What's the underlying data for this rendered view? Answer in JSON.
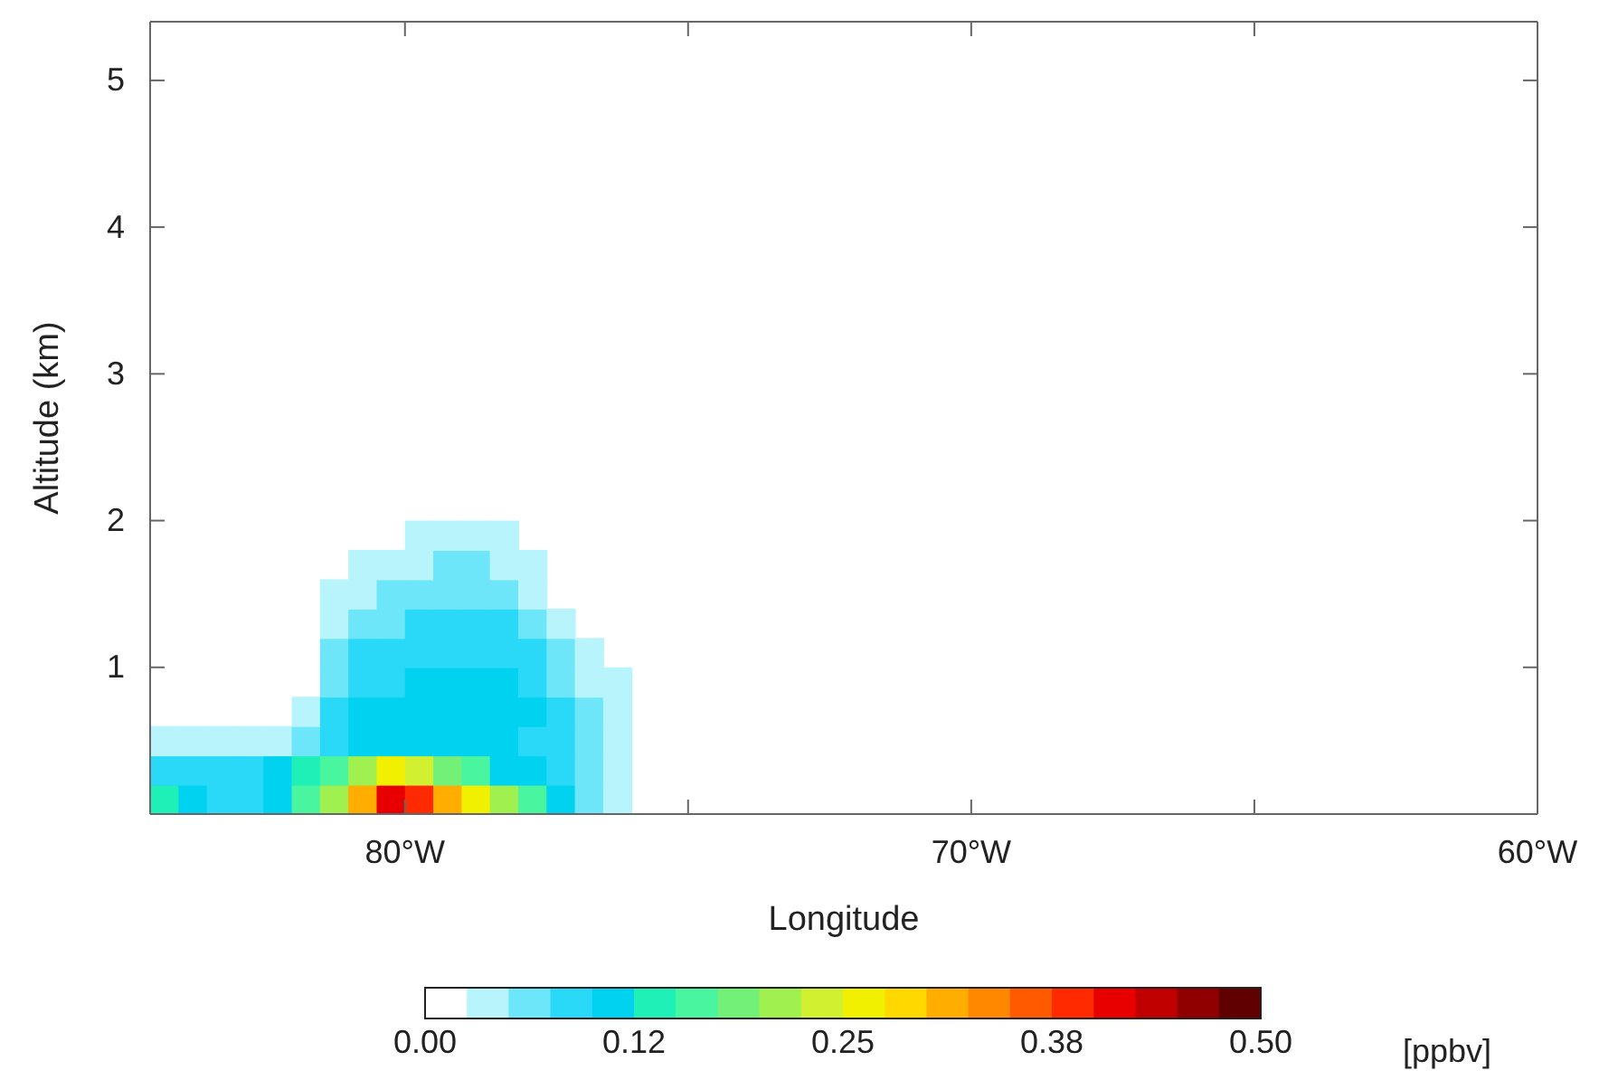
{
  "chart_data": {
    "type": "scatter",
    "marker": "square",
    "xlabel": "Longitude",
    "ylabel": "Altitude (km)",
    "clabel": "[ppbv]",
    "xlim": [
      -84.5,
      -60
    ],
    "ylim": [
      0,
      5.4
    ],
    "xticks": [
      {
        "value": -80,
        "label": "80°W"
      },
      {
        "value": -75,
        "label": null
      },
      {
        "value": -70,
        "label": "70°W"
      },
      {
        "value": -65,
        "label": null
      },
      {
        "value": -60,
        "label": "60°W"
      }
    ],
    "yticks": [
      1,
      2,
      3,
      4,
      5
    ],
    "clim": [
      0,
      0.5
    ],
    "cticks": [
      {
        "value": 0,
        "label": "0.00"
      },
      {
        "value": 0.125,
        "label": "0.12"
      },
      {
        "value": 0.25,
        "label": "0.25"
      },
      {
        "value": 0.375,
        "label": "0.38"
      },
      {
        "value": 0.5,
        "label": "0.50"
      }
    ],
    "x": [
      -84.25,
      -83.75,
      -83.25,
      -82.75,
      -82.25,
      -81.75,
      -81.25,
      -80.75,
      -80.25,
      -79.75,
      -79.25,
      -78.75,
      -78.25,
      -77.75,
      -77.25,
      -76.75,
      -76.25,
      -84.25,
      -83.75,
      -83.25,
      -82.75,
      -82.25,
      -81.75,
      -81.25,
      -80.75,
      -80.25,
      -79.75,
      -79.25,
      -78.75,
      -78.25,
      -77.75,
      -77.25,
      -76.75,
      -76.25,
      -84.25,
      -83.75,
      -83.25,
      -82.75,
      -82.25,
      -81.75,
      -81.25,
      -80.75,
      -80.25,
      -79.75,
      -79.25,
      -78.75,
      -78.25,
      -77.75,
      -77.25,
      -76.75,
      -76.25,
      -81.75,
      -81.25,
      -80.75,
      -80.25,
      -79.75,
      -79.25,
      -78.75,
      -78.25,
      -77.75,
      -77.25,
      -76.75,
      -76.25,
      -81.25,
      -80.75,
      -80.25,
      -79.75,
      -79.25,
      -78.75,
      -78.25,
      -77.75,
      -77.25,
      -76.75,
      -76.25,
      -81.25,
      -80.75,
      -80.25,
      -79.75,
      -79.25,
      -78.75,
      -78.25,
      -77.75,
      -77.25,
      -76.75,
      -81.25,
      -80.75,
      -80.25,
      -79.75,
      -79.25,
      -78.75,
      -78.25,
      -77.75,
      -77.25,
      -81.25,
      -80.75,
      -80.25,
      -79.75,
      -79.25,
      -78.75,
      -78.25,
      -77.75,
      -80.75,
      -80.25,
      -79.75,
      -79.25,
      -78.75,
      -78.25,
      -77.75,
      -79.75,
      -79.25,
      -78.75,
      -78.25
    ],
    "values": [
      0.1,
      0.1,
      0.1,
      0.1,
      0.1,
      0.1,
      0.1,
      0.1,
      0.1,
      0.1,
      0.1,
      0.1,
      0.1,
      0.1,
      0.1,
      0.1,
      0.1,
      0.3,
      0.3,
      0.3,
      0.3,
      0.3,
      0.3,
      0.3,
      0.3,
      0.3,
      0.3,
      0.3,
      0.3,
      0.3,
      0.3,
      0.3,
      0.3,
      0.3,
      0.5,
      0.5,
      0.5,
      0.5,
      0.5,
      0.5,
      0.5,
      0.5,
      0.5,
      0.5,
      0.5,
      0.5,
      0.5,
      0.5,
      0.5,
      0.5,
      0.5,
      0.7,
      0.7,
      0.7,
      0.7,
      0.7,
      0.7,
      0.7,
      0.7,
      0.7,
      0.7,
      0.7,
      0.7,
      0.9,
      0.9,
      0.9,
      0.9,
      0.9,
      0.9,
      0.9,
      0.9,
      0.9,
      0.9,
      0.9,
      1.1,
      1.1,
      1.1,
      1.1,
      1.1,
      1.1,
      1.1,
      1.1,
      1.1,
      1.1,
      1.3,
      1.3,
      1.3,
      1.3,
      1.3,
      1.3,
      1.3,
      1.3,
      1.3,
      1.5,
      1.5,
      1.5,
      1.5,
      1.5,
      1.5,
      1.5,
      1.5,
      1.7,
      1.7,
      1.7,
      1.7,
      1.7,
      1.7,
      1.7,
      1.9,
      1.9,
      1.9,
      1.9
    ],
    "cvalues": [
      0.14,
      0.1,
      0.09,
      0.09,
      0.11,
      0.16,
      0.2,
      0.3,
      0.4,
      0.38,
      0.32,
      0.27,
      0.22,
      0.17,
      0.1,
      0.06,
      0.03,
      0.09,
      0.08,
      0.08,
      0.08,
      0.1,
      0.13,
      0.17,
      0.22,
      0.26,
      0.24,
      0.19,
      0.15,
      0.12,
      0.11,
      0.09,
      0.06,
      0.03,
      0.04,
      0.04,
      0.04,
      0.04,
      0.04,
      0.07,
      0.09,
      0.11,
      0.12,
      0.12,
      0.11,
      0.11,
      0.1,
      0.09,
      0.08,
      0.05,
      0.03,
      0.04,
      0.08,
      0.1,
      0.1,
      0.1,
      0.1,
      0.11,
      0.11,
      0.1,
      0.08,
      0.05,
      0.03,
      0.07,
      0.09,
      0.09,
      0.1,
      0.1,
      0.1,
      0.1,
      0.09,
      0.07,
      0.04,
      0.03,
      0.06,
      0.08,
      0.09,
      0.09,
      0.09,
      0.09,
      0.09,
      0.08,
      0.06,
      0.04,
      0.04,
      0.07,
      0.07,
      0.08,
      0.08,
      0.08,
      0.08,
      0.07,
      0.04,
      0.03,
      0.04,
      0.06,
      0.07,
      0.07,
      0.07,
      0.06,
      0.04,
      0.03,
      0.04,
      0.04,
      0.06,
      0.06,
      0.04,
      0.03,
      0.03,
      0.03,
      0.03,
      0.03
    ]
  }
}
